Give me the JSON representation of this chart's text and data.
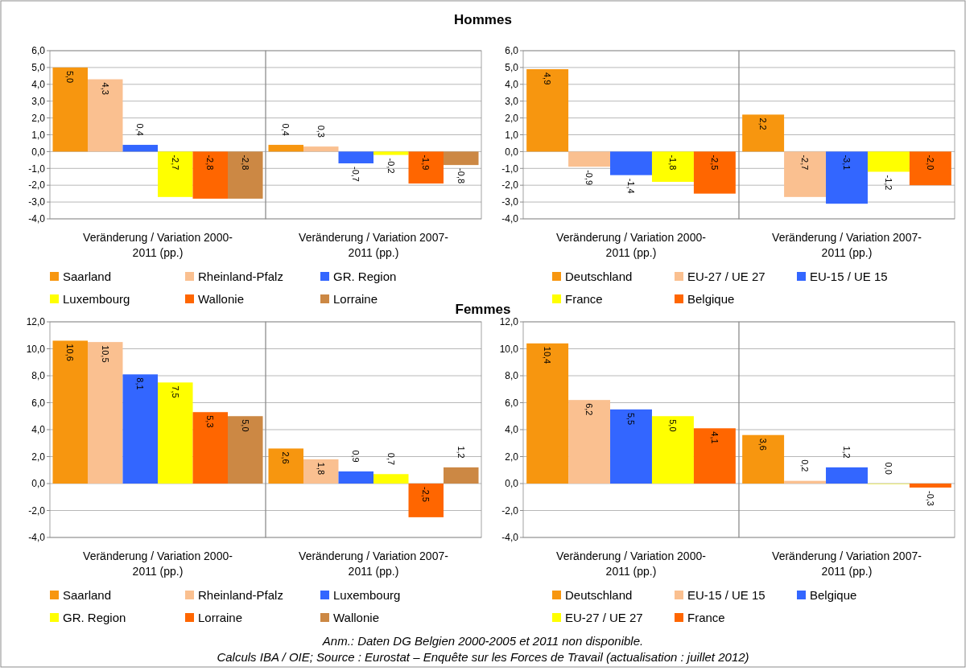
{
  "chart_data": [
    {
      "type": "bar",
      "title": "Hommes",
      "categories": [
        "Veränderung / Variation 2000-2011 (pp.)",
        "Veränderung / Variation 2007-2011 (pp.)"
      ],
      "series": [
        {
          "name": "Saarland",
          "color": "#f7960f",
          "values": [
            5.0,
            0.4
          ],
          "value_labels": [
            "5,0",
            "0,4"
          ]
        },
        {
          "name": "Rheinland-Pfalz",
          "color": "#fac090",
          "values": [
            4.3,
            0.3
          ],
          "value_labels": [
            "4,3",
            "0,3"
          ]
        },
        {
          "name": "GR. Region",
          "color": "#3366ff",
          "values": [
            0.4,
            -0.7
          ],
          "value_labels": [
            "0,4",
            "-0,7"
          ]
        },
        {
          "name": "Luxembourg",
          "color": "#ffff00",
          "values": [
            -2.7,
            -0.2
          ],
          "value_labels": [
            "-2,7",
            "-0,2"
          ]
        },
        {
          "name": "Wallonie",
          "color": "#ff6600",
          "values": [
            -2.8,
            -1.9
          ],
          "value_labels": [
            "-2,8",
            "-1,9"
          ]
        },
        {
          "name": "Lorraine",
          "color": "#cc8844",
          "values": [
            -2.8,
            -0.8
          ],
          "value_labels": [
            "-2,8",
            "-0,8"
          ]
        }
      ],
      "ylim": [
        -4,
        6
      ],
      "yticks": [
        {
          "value": -4,
          "label": "-4,0"
        },
        {
          "value": -3,
          "label": "-3,0"
        },
        {
          "value": -2,
          "label": "-2,0"
        },
        {
          "value": -1,
          "label": "-1,0"
        },
        {
          "value": 0,
          "label": "0,0"
        },
        {
          "value": 1,
          "label": "1,0"
        },
        {
          "value": 2,
          "label": "2,0"
        },
        {
          "value": 3,
          "label": "3,0"
        },
        {
          "value": 4,
          "label": "4,0"
        },
        {
          "value": 5,
          "label": "5,0"
        },
        {
          "value": 6,
          "label": "6,0"
        }
      ],
      "grid": "y",
      "legend": "bottom"
    },
    {
      "type": "bar",
      "categories": [
        "Veränderung / Variation 2000-2011 (pp.)",
        "Veränderung / Variation 2007-2011 (pp.)"
      ],
      "series": [
        {
          "name": "Deutschland",
          "color": "#f7960f",
          "values": [
            4.9,
            2.2
          ],
          "value_labels": [
            "4,9",
            "2,2"
          ]
        },
        {
          "name": "EU-27 / UE 27",
          "color": "#fac090",
          "values": [
            -0.9,
            -2.7
          ],
          "value_labels": [
            "-0,9",
            "-2,7"
          ]
        },
        {
          "name": "EU-15 / UE 15",
          "color": "#3366ff",
          "values": [
            -1.4,
            -3.1
          ],
          "value_labels": [
            "-1,4",
            "-3,1"
          ]
        },
        {
          "name": "France",
          "color": "#ffff00",
          "values": [
            -1.8,
            -1.2
          ],
          "value_labels": [
            "-1,8",
            "-1,2"
          ]
        },
        {
          "name": "Belgique",
          "color": "#ff6600",
          "values": [
            -2.5,
            -2.0
          ],
          "value_labels": [
            "-2,5",
            "-2,0"
          ]
        }
      ],
      "ylim": [
        -4,
        6
      ],
      "yticks": [
        {
          "value": -4,
          "label": "-4,0"
        },
        {
          "value": -3,
          "label": "-3,0"
        },
        {
          "value": -2,
          "label": "-2,0"
        },
        {
          "value": -1,
          "label": "-1,0"
        },
        {
          "value": 0,
          "label": "0,0"
        },
        {
          "value": 1,
          "label": "1,0"
        },
        {
          "value": 2,
          "label": "2,0"
        },
        {
          "value": 3,
          "label": "3,0"
        },
        {
          "value": 4,
          "label": "4,0"
        },
        {
          "value": 5,
          "label": "5,0"
        },
        {
          "value": 6,
          "label": "6,0"
        }
      ],
      "grid": "y",
      "legend": "bottom"
    },
    {
      "type": "bar",
      "title": "Femmes",
      "categories": [
        "Veränderung / Variation 2000-2011 (pp.)",
        "Veränderung / Variation 2007-2011 (pp.)"
      ],
      "series": [
        {
          "name": "Saarland",
          "color": "#f7960f",
          "values": [
            10.6,
            2.6
          ],
          "value_labels": [
            "10,6",
            "2,6"
          ]
        },
        {
          "name": "Rheinland-Pfalz",
          "color": "#fac090",
          "values": [
            10.5,
            1.8
          ],
          "value_labels": [
            "10,5",
            "1,8"
          ]
        },
        {
          "name": "Luxembourg",
          "color": "#3366ff",
          "values": [
            8.1,
            0.9
          ],
          "value_labels": [
            "8,1",
            "0,9"
          ]
        },
        {
          "name": "GR. Region",
          "color": "#ffff00",
          "values": [
            7.5,
            0.7
          ],
          "value_labels": [
            "7,5",
            "0,7"
          ]
        },
        {
          "name": "Lorraine",
          "color": "#ff6600",
          "values": [
            5.3,
            -2.5
          ],
          "value_labels": [
            "5,3",
            "-2,5"
          ]
        },
        {
          "name": "Wallonie",
          "color": "#cc8844",
          "values": [
            5.0,
            1.2
          ],
          "value_labels": [
            "5,0",
            "1,2"
          ]
        }
      ],
      "ylim": [
        -4,
        12
      ],
      "yticks": [
        {
          "value": -4,
          "label": "-4,0"
        },
        {
          "value": -2,
          "label": "-2,0"
        },
        {
          "value": 0,
          "label": "0,0"
        },
        {
          "value": 2,
          "label": "2,0"
        },
        {
          "value": 4,
          "label": "4,0"
        },
        {
          "value": 6,
          "label": "6,0"
        },
        {
          "value": 8,
          "label": "8,0"
        },
        {
          "value": 10,
          "label": "10,0"
        },
        {
          "value": 12,
          "label": "12,0"
        }
      ],
      "grid": "y",
      "legend": "bottom"
    },
    {
      "type": "bar",
      "categories": [
        "Veränderung / Variation 2000-2011 (pp.)",
        "Veränderung / Variation 2007-2011 (pp.)"
      ],
      "series": [
        {
          "name": "Deutschland",
          "color": "#f7960f",
          "values": [
            10.4,
            3.6
          ],
          "value_labels": [
            "10,4",
            "3,6"
          ]
        },
        {
          "name": "EU-15 / UE 15",
          "color": "#fac090",
          "values": [
            6.2,
            0.2
          ],
          "value_labels": [
            "6,2",
            "0,2"
          ]
        },
        {
          "name": "Belgique",
          "color": "#3366ff",
          "values": [
            5.5,
            1.2
          ],
          "value_labels": [
            "5,5",
            "1,2"
          ]
        },
        {
          "name": "EU-27 / UE 27",
          "color": "#ffff00",
          "values": [
            5.0,
            0.0
          ],
          "value_labels": [
            "5,0",
            "0,0"
          ]
        },
        {
          "name": "France",
          "color": "#ff6600",
          "values": [
            4.1,
            -0.3
          ],
          "value_labels": [
            "4,1",
            "-0,3"
          ]
        }
      ],
      "ylim": [
        -4,
        12
      ],
      "yticks": [
        {
          "value": -4,
          "label": "-4,0"
        },
        {
          "value": -2,
          "label": "-2,0"
        },
        {
          "value": 0,
          "label": "0,0"
        },
        {
          "value": 2,
          "label": "2,0"
        },
        {
          "value": 4,
          "label": "4,0"
        },
        {
          "value": 6,
          "label": "6,0"
        },
        {
          "value": 8,
          "label": "8,0"
        },
        {
          "value": 10,
          "label": "10,0"
        },
        {
          "value": 12,
          "label": "12,0"
        }
      ],
      "grid": "y",
      "legend": "bottom",
      "annotations": [
        "Anm.: Daten DG Belgien 2000-2005 et 2011 non disponible.",
        "Calculs IBA / OIE; Source : Eurostat – Enquête sur les Forces de Travail (actualisation : juillet 2012)"
      ]
    }
  ]
}
